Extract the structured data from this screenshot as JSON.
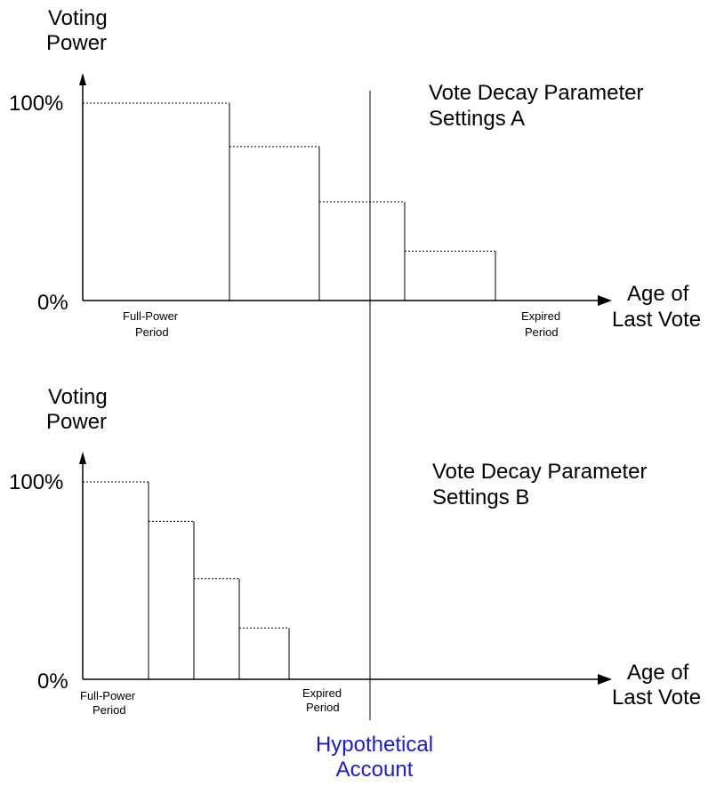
{
  "colors": {
    "lines": "#000000",
    "hypothetical_account": "#1a1adc"
  },
  "chart_data": [
    {
      "type": "bar",
      "title": "Vote Decay Parameter Settings A",
      "title_lines": [
        "Vote Decay Parameter",
        "Settings A"
      ],
      "ylabel_lines": [
        "Voting",
        "Power"
      ],
      "xlabel_lines": [
        "Age of",
        "Last Vote"
      ],
      "ytick_top": "100%",
      "ytick_bottom": "0%",
      "ylim": [
        0,
        100
      ],
      "x_range": [
        0,
        580
      ],
      "start_label_lines": [
        "Full-Power",
        "Period"
      ],
      "end_label_lines": [
        "Expired",
        "Period"
      ],
      "steps": [
        {
          "x0": 0,
          "x1": 165,
          "value": 100
        },
        {
          "x0": 165,
          "x1": 266,
          "value": 78
        },
        {
          "x0": 266,
          "x1": 362,
          "value": 50
        },
        {
          "x0": 362,
          "x1": 464,
          "value": 25
        }
      ]
    },
    {
      "type": "bar",
      "title": "Vote Decay Parameter Settings B",
      "title_lines": [
        "Vote Decay Parameter",
        "Settings B"
      ],
      "ylabel_lines": [
        "Voting",
        "Power"
      ],
      "xlabel_lines": [
        "Age of",
        "Last Vote"
      ],
      "ytick_top": "100%",
      "ytick_bottom": "0%",
      "ylim": [
        0,
        100
      ],
      "x_range": [
        0,
        580
      ],
      "start_label_lines": [
        "Full-Power",
        "Period"
      ],
      "end_label_lines": [
        "Expired",
        "Period"
      ],
      "steps": [
        {
          "x0": 0,
          "x1": 74,
          "value": 100
        },
        {
          "x0": 74,
          "x1": 125,
          "value": 80
        },
        {
          "x0": 125,
          "x1": 176,
          "value": 51
        },
        {
          "x0": 176,
          "x1": 232,
          "value": 26
        }
      ]
    }
  ],
  "hypothetical": {
    "label_lines": [
      "Hypothetical",
      "Account"
    ],
    "x": 323
  }
}
